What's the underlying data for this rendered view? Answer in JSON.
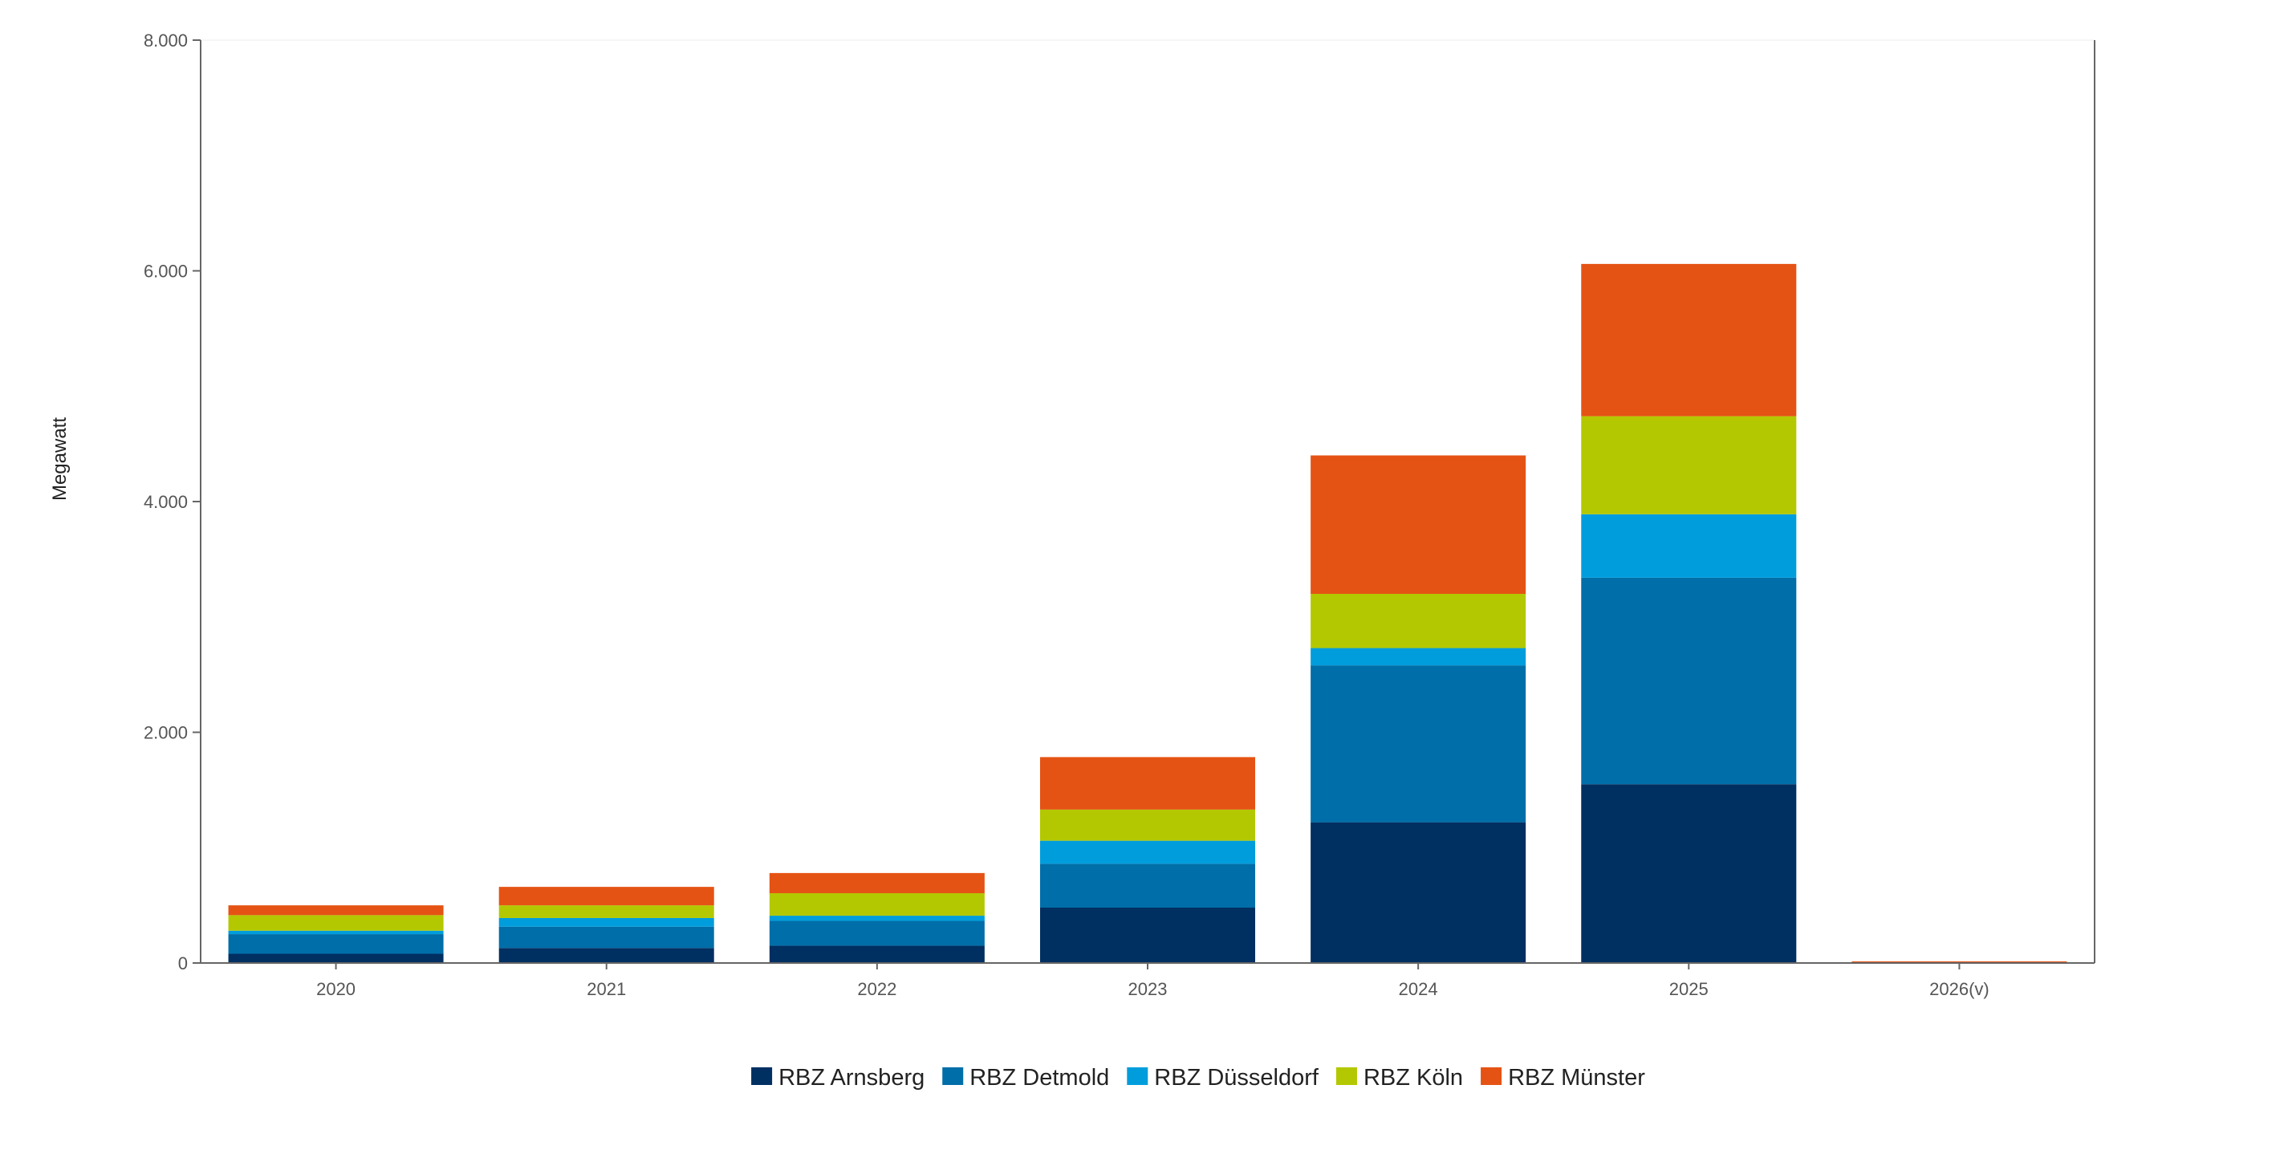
{
  "chart_data": {
    "type": "bar",
    "stacked": true,
    "categories": [
      "2020",
      "2021",
      "2022",
      "2023",
      "2024",
      "2025",
      "2026(v)"
    ],
    "ylabel": "Megawatt",
    "xlabel": "",
    "ylim": [
      0,
      8000
    ],
    "yticks": [
      0,
      2000,
      4000,
      6000,
      8000
    ],
    "ytick_labels": [
      "0",
      "2.000",
      "4.000",
      "6.000",
      "8.000"
    ],
    "grid": false,
    "legend_position": "bottom-center",
    "series": [
      {
        "name": "RBZ Arnsberg",
        "color": "#002f62",
        "values": [
          80,
          130,
          150,
          480,
          1220,
          1550,
          0
        ]
      },
      {
        "name": "RBZ Detmold",
        "color": "#006ea8",
        "values": [
          170,
          185,
          215,
          380,
          1360,
          1790,
          0
        ]
      },
      {
        "name": "RBZ Düsseldorf",
        "color": "#009ddc",
        "values": [
          30,
          75,
          45,
          200,
          150,
          550,
          0
        ]
      },
      {
        "name": "RBZ Köln",
        "color": "#b3c800",
        "values": [
          135,
          110,
          195,
          270,
          470,
          850,
          0
        ]
      },
      {
        "name": "RBZ Münster",
        "color": "#e55314",
        "values": [
          85,
          160,
          175,
          455,
          1200,
          1320,
          5
        ]
      }
    ]
  }
}
